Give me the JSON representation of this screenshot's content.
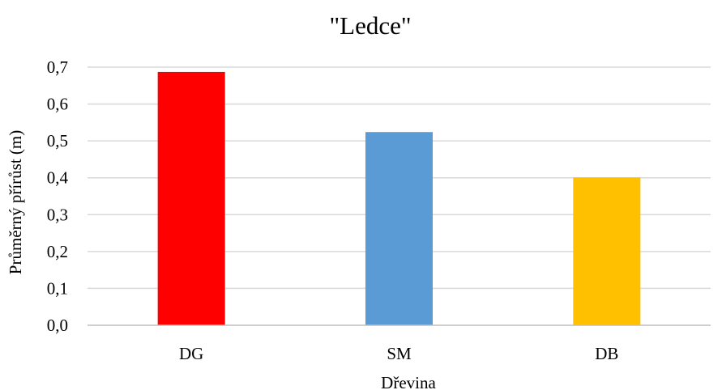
{
  "chart_data": {
    "type": "bar",
    "title": "\"Ledce\"",
    "xlabel": "Dřevina",
    "ylabel": "Průměrný přírůst (m)",
    "categories": [
      "DG",
      "SM",
      "DB"
    ],
    "values": [
      0.687,
      0.524,
      0.401
    ],
    "colors": [
      "#ff0000",
      "#5b9bd5",
      "#ffc000"
    ],
    "ylim": [
      0,
      0.7
    ],
    "yticks": [
      "0,0",
      "0,1",
      "0,2",
      "0,3",
      "0,4",
      "0,5",
      "0,6",
      "0,7"
    ],
    "grid": true,
    "legend": "none"
  }
}
